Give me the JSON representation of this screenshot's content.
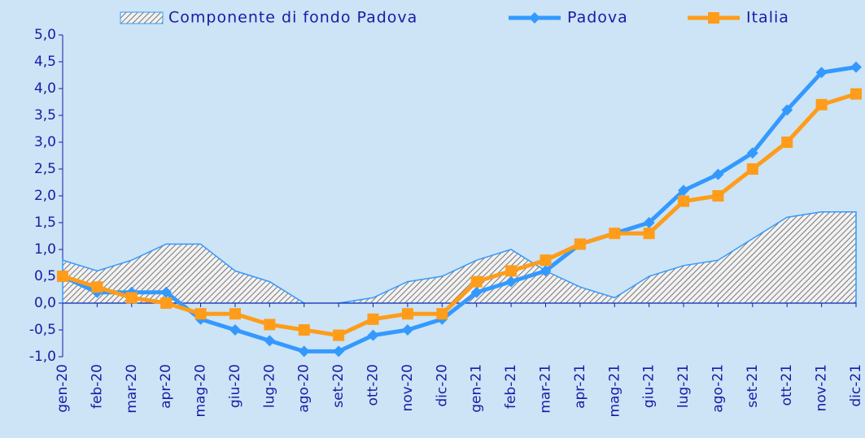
{
  "chart_data": {
    "type": "line",
    "categories": [
      "gen-20",
      "feb-20",
      "mar-20",
      "apr-20",
      "mag-20",
      "giu-20",
      "lug-20",
      "ago-20",
      "set-20",
      "ott-20",
      "nov-20",
      "dic-20",
      "gen-21",
      "feb-21",
      "mar-21",
      "apr-21",
      "mag-21",
      "giu-21",
      "lug-21",
      "ago-21",
      "set-21",
      "ott-21",
      "nov-21",
      "dic-21"
    ],
    "series": [
      {
        "name": "Componente di fondo Padova",
        "kind": "area",
        "color": "#3399ff",
        "values": [
          0.8,
          0.6,
          0.8,
          1.1,
          1.1,
          0.6,
          0.4,
          0.0,
          0.0,
          0.1,
          0.4,
          0.5,
          0.8,
          1.0,
          0.6,
          0.3,
          0.1,
          0.5,
          0.7,
          0.8,
          1.2,
          1.6,
          1.7,
          1.7
        ]
      },
      {
        "name": "Padova",
        "kind": "line",
        "marker": "diamond",
        "color": "#3399ff",
        "values": [
          0.5,
          0.2,
          0.2,
          0.2,
          -0.3,
          -0.5,
          -0.7,
          -0.9,
          -0.9,
          -0.6,
          -0.5,
          -0.3,
          0.2,
          0.4,
          0.6,
          1.1,
          1.3,
          1.5,
          2.1,
          2.4,
          2.8,
          3.6,
          4.3,
          4.4
        ]
      },
      {
        "name": "Italia",
        "kind": "line",
        "marker": "square",
        "color": "#ff9c1a",
        "values": [
          0.5,
          0.3,
          0.1,
          0.0,
          -0.2,
          -0.2,
          -0.4,
          -0.5,
          -0.6,
          -0.3,
          -0.2,
          -0.2,
          0.4,
          0.6,
          0.8,
          1.1,
          1.3,
          1.3,
          1.9,
          2.0,
          2.5,
          3.0,
          3.7,
          3.9
        ]
      }
    ],
    "ylim": [
      -1,
      5
    ],
    "yticks": [
      {
        "value": -1,
        "label": "-1,0"
      },
      {
        "value": -0.5,
        "label": "-0,5"
      },
      {
        "value": 0,
        "label": "0,0"
      },
      {
        "value": 0.5,
        "label": "0,5"
      },
      {
        "value": 1,
        "label": "1,0"
      },
      {
        "value": 1.5,
        "label": "1,5"
      },
      {
        "value": 2,
        "label": "2,0"
      },
      {
        "value": 2.5,
        "label": "2,5"
      },
      {
        "value": 3,
        "label": "3,0"
      },
      {
        "value": 3.5,
        "label": "3,5"
      },
      {
        "value": 4,
        "label": "4,0"
      },
      {
        "value": 4.5,
        "label": "4,5"
      },
      {
        "value": 5,
        "label": "5,0"
      }
    ],
    "grid": false,
    "legend": "top"
  }
}
